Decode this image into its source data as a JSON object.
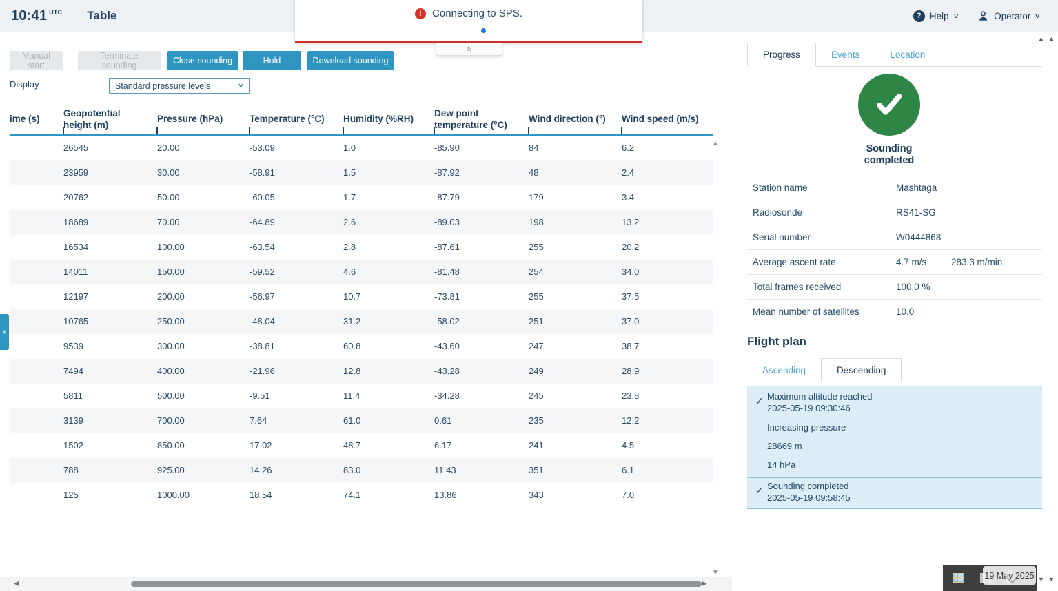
{
  "topbar": {
    "time": "10:41",
    "time_zone": "UTC",
    "title": "Table",
    "help_label": "Help",
    "operator_label": "Operator"
  },
  "notification": {
    "message": "Connecting to SPS."
  },
  "toolbar": {
    "manual_start": "Manual start",
    "terminate": "Terminate sounding",
    "close": "Close sounding",
    "hold": "Hold",
    "download": "Download sounding",
    "display_label": "Display",
    "display_value": "Standard pressure levels"
  },
  "table": {
    "headers": [
      "ime (s)",
      "Geopotential height (m)",
      "Pressure (hPa)",
      "Temperature (°C)",
      "Humidity (%RH)",
      "Dew point temperature (°C)",
      "Wind direction (°)",
      "Wind speed (m/s)"
    ],
    "rows": [
      [
        "",
        "26545",
        "20.00",
        "-53.09",
        "1.0",
        "-85.90",
        "84",
        "6.2"
      ],
      [
        "",
        "23959",
        "30.00",
        "-58.91",
        "1.5",
        "-87.92",
        "48",
        "2.4"
      ],
      [
        "",
        "20762",
        "50.00",
        "-60.05",
        "1.7",
        "-87.79",
        "179",
        "3.4"
      ],
      [
        "",
        "18689",
        "70.00",
        "-64.89",
        "2.6",
        "-89.03",
        "198",
        "13.2"
      ],
      [
        "",
        "16534",
        "100.00",
        "-63.54",
        "2.8",
        "-87.61",
        "255",
        "20.2"
      ],
      [
        "",
        "14011",
        "150.00",
        "-59.52",
        "4.6",
        "-81.48",
        "254",
        "34.0"
      ],
      [
        "",
        "12197",
        "200.00",
        "-56.97",
        "10.7",
        "-73.81",
        "255",
        "37.5"
      ],
      [
        "",
        "10765",
        "250.00",
        "-48.04",
        "31.2",
        "-58.02",
        "251",
        "37.0"
      ],
      [
        "",
        "9539",
        "300.00",
        "-38.81",
        "60.8",
        "-43.60",
        "247",
        "38.7"
      ],
      [
        "",
        "7494",
        "400.00",
        "-21.96",
        "12.8",
        "-43.28",
        "249",
        "28.9"
      ],
      [
        "",
        "5811",
        "500.00",
        "-9.51",
        "11.4",
        "-34.28",
        "245",
        "23.8"
      ],
      [
        "",
        "3139",
        "700.00",
        "7.64",
        "61.0",
        "0.61",
        "235",
        "12.2"
      ],
      [
        "",
        "1502",
        "850.00",
        "17.02",
        "48.7",
        "6.17",
        "241",
        "4.5"
      ],
      [
        "",
        "788",
        "925.00",
        "14.26",
        "83.0",
        "11.43",
        "351",
        "6.1"
      ],
      [
        "",
        "125",
        "1000.00",
        "18.54",
        "74.1",
        "13.86",
        "343",
        "7.0"
      ]
    ]
  },
  "panel": {
    "tabs": [
      "Progress",
      "Events",
      "Location"
    ],
    "active_tab": "Progress",
    "status_title": "Sounding completed",
    "details": [
      {
        "label": "Station name",
        "value": "Mashtaga",
        "value2": ""
      },
      {
        "label": "Radiosonde",
        "value": "RS41-SG",
        "value2": ""
      },
      {
        "label": "Serial number",
        "value": "W0444868",
        "value2": ""
      },
      {
        "label": "Average ascent rate",
        "value": "4.7 m/s",
        "value2": "283.3 m/min"
      },
      {
        "label": "Total frames received",
        "value": "100.0 %",
        "value2": ""
      },
      {
        "label": "Mean number of satellites",
        "value": "10.0",
        "value2": ""
      }
    ],
    "flight_plan": {
      "title": "Flight plan",
      "tabs": [
        "Ascending",
        "Descending"
      ],
      "active_tab": "Descending",
      "items": [
        {
          "title": "Maximum altitude reached",
          "subtitle": "2025-05-19 09:30:46",
          "lines": [
            "Increasing pressure",
            "28669 m",
            "14 hPa"
          ]
        },
        {
          "title": "Sounding completed",
          "subtitle": "2025-05-19 09:58:45",
          "lines": []
        }
      ]
    }
  },
  "misc": {
    "left_tab_label": "x",
    "tooltip_date": "19 May 2025"
  },
  "colors": {
    "accent": "#2e96c0",
    "navy": "#1d3e5e",
    "red": "#d32f2f",
    "green": "#2e8646",
    "link_blue": "#4aa3d8"
  }
}
